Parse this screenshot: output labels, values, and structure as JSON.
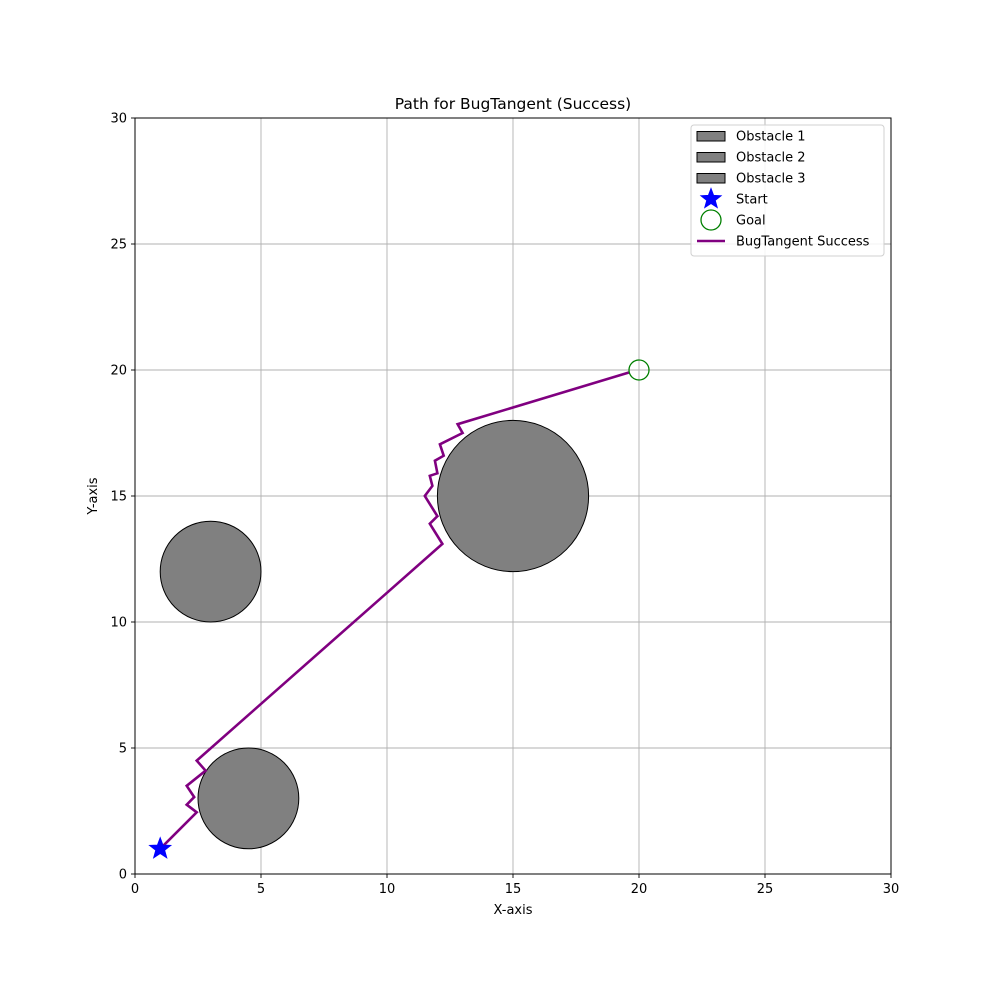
{
  "chart_data": {
    "type": "line",
    "title": "Path for BugTangent (Success)",
    "xlabel": "X-axis",
    "ylabel": "Y-axis",
    "xlim": [
      0,
      30
    ],
    "ylim": [
      0,
      30
    ],
    "xticks": [
      0,
      5,
      10,
      15,
      20,
      25,
      30
    ],
    "yticks": [
      0,
      5,
      10,
      15,
      20,
      25,
      30
    ],
    "xtick_labels": [
      "0",
      "5",
      "10",
      "15",
      "20",
      "25",
      "30"
    ],
    "ytick_labels": [
      "0",
      "5",
      "10",
      "15",
      "20",
      "25",
      "30"
    ],
    "grid": true,
    "legend_position": "top-right",
    "obstacles": [
      {
        "name": "Obstacle 1",
        "center": [
          4.5,
          3
        ],
        "radius": 2,
        "color": "#808080"
      },
      {
        "name": "Obstacle 2",
        "center": [
          3,
          12
        ],
        "radius": 2,
        "color": "#808080"
      },
      {
        "name": "Obstacle 3",
        "center": [
          15,
          15
        ],
        "radius": 3,
        "color": "#808080"
      }
    ],
    "start": {
      "name": "Start",
      "point": [
        1,
        1
      ],
      "color": "#0000ff",
      "marker": "star"
    },
    "goal": {
      "name": "Goal",
      "point": [
        20,
        20
      ],
      "color": "#008000",
      "marker": "hollow-circle"
    },
    "series": [
      {
        "name": "BugTangent Success",
        "color": "#800080",
        "points": [
          [
            1,
            1
          ],
          [
            2.45,
            2.45
          ],
          [
            2.05,
            2.75
          ],
          [
            2.35,
            3.05
          ],
          [
            2.05,
            3.5
          ],
          [
            2.8,
            4.1
          ],
          [
            2.45,
            4.5
          ],
          [
            12.2,
            13.1
          ],
          [
            11.7,
            13.9
          ],
          [
            12.0,
            14.2
          ],
          [
            11.5,
            15.0
          ],
          [
            11.8,
            15.4
          ],
          [
            11.7,
            15.8
          ],
          [
            12.0,
            15.9
          ],
          [
            11.9,
            16.4
          ],
          [
            12.25,
            16.6
          ],
          [
            12.1,
            17.05
          ],
          [
            13.0,
            17.5
          ],
          [
            12.8,
            17.85
          ],
          [
            19.6,
            19.9
          ]
        ]
      }
    ],
    "legend": [
      {
        "label": "Obstacle 1",
        "kind": "patch"
      },
      {
        "label": "Obstacle 2",
        "kind": "patch"
      },
      {
        "label": "Obstacle 3",
        "kind": "patch"
      },
      {
        "label": "Start",
        "kind": "star"
      },
      {
        "label": "Goal",
        "kind": "circle"
      },
      {
        "label": "BugTangent Success",
        "kind": "line"
      }
    ]
  }
}
